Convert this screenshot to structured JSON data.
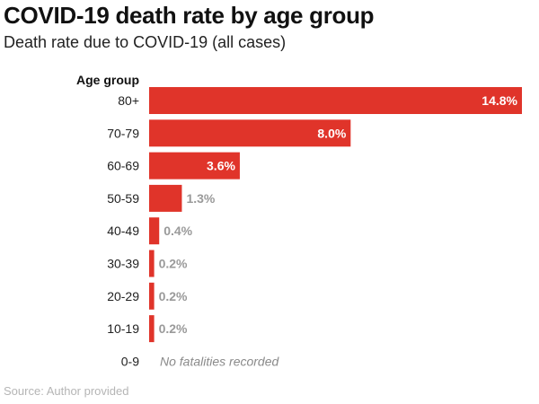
{
  "chart_data": {
    "type": "bar",
    "orientation": "horizontal",
    "title": "COVID-19 death rate by age group",
    "subtitle": "Death rate due to COVID-19 (all cases)",
    "ylabel": "Age group",
    "categories": [
      "80+",
      "70-79",
      "60-69",
      "50-59",
      "40-49",
      "30-39",
      "20-29",
      "10-19",
      "0-9"
    ],
    "values": [
      14.8,
      8.0,
      3.6,
      1.3,
      0.4,
      0.2,
      0.2,
      0.2,
      null
    ],
    "value_labels": [
      "14.8%",
      "8.0%",
      "3.6%",
      "1.3%",
      "0.4%",
      "0.2%",
      "0.2%",
      "0.2%",
      ""
    ],
    "annotations": [
      {
        "category": "0-9",
        "text": "No fatalities recorded"
      }
    ],
    "xlim": [
      0,
      14.8
    ],
    "grid": false,
    "bar_color": "#e0342a",
    "source": "Source: Author provided"
  }
}
